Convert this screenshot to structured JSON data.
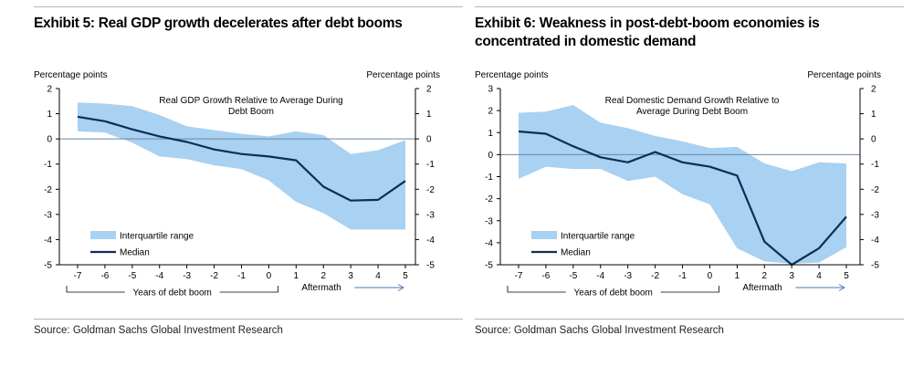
{
  "exhibits": [
    {
      "title": "Exhibit 5: Real GDP growth decelerates after debt booms",
      "source": "Source: Goldman Sachs Global Investment Research",
      "chart_data": {
        "type": "area",
        "title": "Real GDP Growth Relative to Average During Debt Boom",
        "title_lines": [
          "Real GDP Growth Relative to Average During",
          "Debt Boom"
        ],
        "ylabel_left": "Percentage points",
        "ylabel_right": "Percentage points",
        "ylim": [
          -5,
          2
        ],
        "yticks": [
          2,
          1,
          0,
          -1,
          -2,
          -3,
          -4,
          -5
        ],
        "x": [
          -7,
          -6,
          -5,
          -4,
          -3,
          -2,
          -1,
          0,
          1,
          2,
          3,
          4,
          5
        ],
        "x_group_labels": {
          "boom": "Years of debt boom",
          "after": "Aftermath"
        },
        "series": [
          {
            "name": "Interquartile range",
            "kind": "band",
            "upper": [
              1.45,
              1.4,
              1.3,
              0.95,
              0.5,
              0.35,
              0.2,
              0.1,
              0.3,
              0.15,
              -0.6,
              -0.45,
              -0.05
            ],
            "lower": [
              0.3,
              0.25,
              -0.15,
              -0.7,
              -0.8,
              -1.05,
              -1.2,
              -1.65,
              -2.5,
              -2.95,
              -3.6,
              -3.6,
              -3.6
            ]
          },
          {
            "name": "Median",
            "kind": "line",
            "values": [
              0.88,
              0.7,
              0.38,
              0.1,
              -0.12,
              -0.42,
              -0.6,
              -0.7,
              -0.85,
              -1.9,
              -2.45,
              -2.42,
              -1.67
            ]
          }
        ],
        "legend": "bottom-left",
        "colors": {
          "band": "#a9d1f1",
          "line": "#0d2e57",
          "zero": "#6a86a6"
        }
      }
    },
    {
      "title": "Exhibit 6: Weakness in post-debt-boom economies is concentrated in domestic demand",
      "source": "Source: Goldman Sachs Global Investment Research",
      "chart_data": {
        "type": "area",
        "title": "Real Domestic Demand Growth Relative to Average During Debt Boom",
        "title_lines": [
          "Real Domestic Demand Growth Relative to",
          "Average During Debt Boom"
        ],
        "ylabel_left": "Percentage points",
        "ylabel_right": "Percentage points",
        "ylim_left": [
          -5,
          3
        ],
        "yticks_left": [
          3,
          2,
          1,
          0,
          -1,
          -2,
          -3,
          -4,
          -5
        ],
        "ylim_right": [
          -5,
          2
        ],
        "yticks_right": [
          2,
          1,
          0,
          -1,
          -2,
          -3,
          -4,
          -5
        ],
        "x": [
          -7,
          -6,
          -5,
          -4,
          -3,
          -2,
          -1,
          0,
          1,
          2,
          3,
          4,
          5
        ],
        "x_group_labels": {
          "boom": "Years of debt boom",
          "after": "Aftermath"
        },
        "series": [
          {
            "name": "Interquartile range",
            "kind": "band",
            "upper": [
              1.9,
              1.95,
              2.25,
              1.45,
              1.2,
              0.85,
              0.6,
              0.3,
              0.35,
              -0.4,
              -0.75,
              -0.35,
              -0.4
            ],
            "lower": [
              -1.1,
              -0.55,
              -0.65,
              -0.65,
              -1.2,
              -1.0,
              -1.8,
              -2.25,
              -4.25,
              -4.85,
              -4.95,
              -4.9,
              -4.2
            ]
          },
          {
            "name": "Median",
            "kind": "line",
            "values": [
              1.05,
              0.95,
              0.38,
              -0.12,
              -0.35,
              0.12,
              -0.35,
              -0.55,
              -0.95,
              -3.95,
              -5.0,
              -4.25,
              -2.82
            ]
          }
        ],
        "legend": "bottom-left",
        "colors": {
          "band": "#a9d1f1",
          "line": "#0d2e57",
          "zero": "#6a86a6"
        }
      }
    }
  ]
}
